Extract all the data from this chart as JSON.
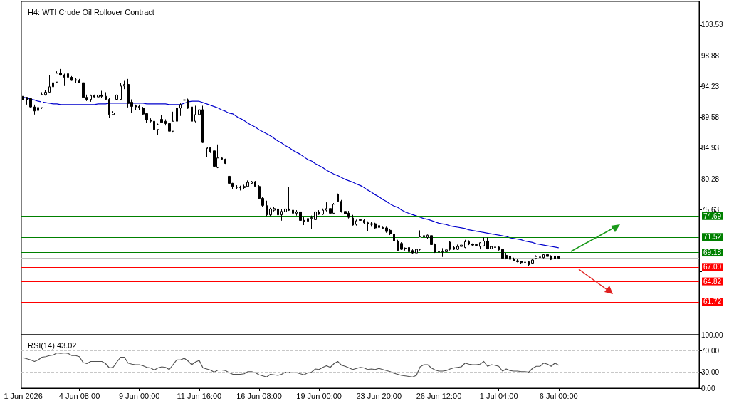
{
  "chart_data": [
    {
      "type": "candlestick",
      "title": "H4: WTI Crude Oil Rollover Contract",
      "categories": [
        null,
        null,
        null,
        null,
        null,
        null,
        null,
        null,
        null,
        null,
        null,
        null,
        null,
        null,
        null,
        null,
        null,
        null,
        null,
        null,
        null,
        null,
        null,
        null,
        null,
        null,
        null,
        null,
        null,
        null,
        null,
        null,
        null,
        null,
        null,
        null,
        null,
        null,
        null,
        null,
        null,
        null,
        null,
        null,
        null,
        null,
        null,
        null,
        null,
        null,
        null,
        null,
        null,
        null,
        null,
        null,
        null,
        null,
        null,
        null,
        null,
        null,
        null,
        null,
        null,
        null,
        null,
        null,
        null,
        null,
        null,
        null,
        null,
        null,
        null,
        null,
        null,
        null,
        null,
        null,
        null,
        null,
        null,
        null,
        null,
        null,
        null,
        null,
        null,
        null,
        null,
        null,
        null,
        null,
        null,
        null,
        null,
        null,
        null,
        null,
        null,
        null,
        null,
        null,
        null,
        null,
        null,
        null,
        null,
        null,
        null,
        null,
        null,
        null,
        null,
        null,
        null,
        null,
        null,
        null,
        null,
        null,
        null,
        null,
        null,
        null,
        null,
        null,
        null,
        null,
        null,
        null,
        null,
        null,
        null,
        null,
        null,
        null,
        null,
        null,
        null,
        null,
        null,
        null,
        null,
        null,
        null,
        null,
        null,
        null,
        null,
        null,
        null,
        null,
        null,
        null,
        null,
        null,
        null,
        null,
        null,
        null,
        null,
        null,
        null,
        null,
        null,
        null,
        null,
        null,
        null,
        null,
        null,
        null,
        null,
        null,
        null,
        null,
        null,
        null,
        null
      ],
      "ohlc": [
        [
          92.76,
          92.94,
          92.04,
          92.22
        ],
        [
          92.58,
          92.65,
          91.5,
          92.29
        ],
        [
          92.4,
          92.51,
          91.07,
          91.15
        ],
        [
          91.15,
          91.5,
          90.0,
          90.54
        ],
        [
          90.61,
          91.22,
          90.0,
          91.07
        ],
        [
          91.04,
          93.37,
          90.86,
          93.01
        ],
        [
          93.01,
          93.65,
          92.86,
          93.37
        ],
        [
          93.37,
          95.98,
          93.29,
          94.19
        ],
        [
          94.19,
          95.08,
          94.08,
          94.8
        ],
        [
          94.9,
          96.52,
          94.73,
          96.23
        ],
        [
          96.23,
          96.87,
          95.87,
          95.98
        ],
        [
          95.98,
          96.16,
          94.3,
          95.62
        ],
        [
          95.62,
          96.34,
          95.37,
          96.16
        ],
        [
          95.62,
          95.8,
          95.08,
          95.16
        ],
        [
          95.26,
          95.51,
          94.8,
          95.16
        ],
        [
          95.08,
          95.37,
          94.73,
          94.8
        ],
        [
          94.8,
          95.16,
          91.86,
          92.58
        ],
        [
          92.58,
          93.01,
          92.04,
          92.29
        ],
        [
          92.29,
          93.01,
          91.93,
          92.86
        ],
        [
          92.86,
          93.01,
          92.58,
          92.65
        ],
        [
          92.65,
          93.47,
          92.51,
          92.94
        ],
        [
          92.94,
          93.58,
          92.51,
          92.76
        ],
        [
          92.76,
          93.37,
          92.15,
          92.29
        ],
        [
          92.29,
          92.51,
          89.54,
          90.0
        ],
        [
          90.0,
          90.5,
          89.89,
          90.25
        ],
        [
          92.29,
          93.01,
          92.15,
          92.94
        ],
        [
          92.29,
          94.73,
          92.22,
          94.3
        ],
        [
          94.3,
          95.08,
          93.83,
          94.55
        ],
        [
          94.55,
          95.37,
          91.07,
          91.68
        ],
        [
          91.86,
          92.29,
          90.25,
          91.22
        ],
        [
          91.33,
          91.5,
          90.72,
          91.15
        ],
        [
          91.22,
          91.5,
          90.72,
          91.07
        ],
        [
          90.97,
          91.15,
          89.89,
          90.07
        ],
        [
          90.14,
          90.25,
          88.71,
          89.18
        ],
        [
          89.18,
          89.43,
          88.82,
          88.99
        ],
        [
          88.99,
          89.18,
          85.85,
          87.74
        ],
        [
          87.74,
          88.64,
          86.92,
          88.46
        ],
        [
          89.28,
          89.89,
          88.71,
          88.82
        ],
        [
          88.99,
          89.28,
          88.35,
          88.64
        ],
        [
          88.64,
          88.82,
          87.28,
          87.49
        ],
        [
          87.49,
          90.43,
          87.28,
          88.99
        ],
        [
          88.99,
          91.33,
          88.82,
          90.97
        ],
        [
          90.97,
          91.68,
          89.79,
          91.5
        ],
        [
          92.22,
          93.58,
          91.86,
          92.15
        ],
        [
          92.22,
          92.4,
          90.86,
          90.97
        ],
        [
          91.15,
          91.33,
          88.82,
          88.99
        ],
        [
          88.99,
          91.33,
          88.82,
          90.0
        ],
        [
          90.0,
          91.5,
          88.99,
          90.72
        ],
        [
          90.72,
          91.33,
          85.71,
          85.78
        ],
        [
          84.88,
          85.12,
          83.63,
          85.05
        ],
        [
          85.0,
          85.1,
          84.2,
          84.4
        ],
        [
          84.52,
          84.7,
          81.55,
          82.19
        ],
        [
          82.02,
          85.49,
          81.91,
          83.45
        ],
        [
          83.45,
          83.52,
          83.2,
          83.27
        ],
        [
          83.27,
          83.34,
          82.55,
          82.62
        ],
        [
          80.69,
          80.94,
          79.3,
          79.62
        ],
        [
          79.62,
          79.69,
          78.79,
          79.15
        ],
        [
          79.05,
          79.33,
          78.7,
          79.0
        ],
        [
          79.0,
          79.26,
          78.54,
          78.97
        ],
        [
          78.97,
          79.4,
          78.8,
          79.15
        ],
        [
          79.15,
          80.05,
          79.05,
          79.76
        ],
        [
          79.62,
          79.97,
          79.5,
          79.87
        ],
        [
          79.87,
          79.97,
          79.12,
          79.15
        ],
        [
          79.15,
          79.33,
          77.25,
          77.36
        ],
        [
          77.36,
          77.54,
          76.11,
          76.29
        ],
        [
          76.26,
          77.0,
          74.68,
          74.86
        ],
        [
          74.86,
          75.93,
          74.68,
          75.75
        ],
        [
          75.57,
          76.04,
          75.39,
          75.82
        ],
        [
          75.75,
          75.82,
          74.75,
          74.86
        ],
        [
          74.86,
          75.75,
          73.99,
          75.39
        ],
        [
          75.32,
          76.29,
          74.75,
          75.75
        ],
        [
          75.75,
          79.04,
          75.46,
          75.57
        ],
        [
          75.57,
          75.93,
          75.0,
          75.11
        ],
        [
          75.11,
          75.57,
          74.75,
          75.32
        ],
        [
          75.32,
          75.57,
          73.96,
          74.03
        ],
        [
          74.03,
          74.5,
          73.32,
          73.89
        ],
        [
          73.89,
          74.68,
          73.67,
          74.32
        ],
        [
          74.32,
          74.75,
          72.71,
          74.46
        ],
        [
          74.14,
          75.93,
          73.96,
          75.32
        ],
        [
          75.32,
          75.57,
          74.86,
          74.96
        ],
        [
          74.96,
          75.82,
          74.86,
          75.57
        ],
        [
          75.57,
          76.75,
          75.39,
          75.82
        ],
        [
          75.82,
          75.93,
          75.0,
          75.11
        ],
        [
          75.11,
          76.65,
          75.0,
          76.47
        ],
        [
          77.97,
          78.08,
          76.83,
          76.9
        ],
        [
          76.9,
          77.11,
          75.21,
          75.32
        ],
        [
          75.39,
          75.57,
          74.86,
          75.03
        ],
        [
          75.11,
          75.46,
          74.32,
          74.5
        ],
        [
          74.39,
          74.86,
          73.25,
          73.32
        ],
        [
          73.42,
          74.14,
          73.25,
          73.96
        ],
        [
          74.14,
          74.39,
          73.89,
          74.03
        ],
        [
          74.03,
          74.25,
          73.53,
          73.67
        ],
        [
          73.67,
          73.89,
          72.46,
          73.53
        ],
        [
          73.53,
          73.78,
          73.07,
          73.42
        ],
        [
          73.53,
          73.67,
          72.71,
          72.89
        ],
        [
          72.96,
          73.42,
          72.82,
          73.25
        ],
        [
          72.96,
          73.07,
          72.71,
          72.82
        ],
        [
          72.89,
          73.07,
          72.17,
          72.35
        ],
        [
          72.53,
          72.71,
          71.81,
          72.0
        ],
        [
          71.98,
          72.16,
          70.8,
          70.91
        ],
        [
          70.91,
          71.09,
          69.37,
          69.48
        ],
        [
          70.55,
          70.73,
          69.58,
          69.66
        ],
        [
          69.84,
          69.94,
          69.48,
          69.76
        ],
        [
          69.94,
          70.09,
          69.23,
          69.3
        ],
        [
          69.48,
          69.66,
          68.94,
          69.12
        ],
        [
          69.12,
          69.73,
          68.94,
          69.66
        ],
        [
          69.66,
          72.52,
          69.48,
          71.52
        ],
        [
          71.52,
          72.34,
          71.37,
          71.73
        ],
        [
          71.45,
          71.88,
          71.27,
          71.8
        ],
        [
          71.73,
          71.88,
          70.19,
          70.37
        ],
        [
          70.37,
          70.55,
          69.12,
          69.23
        ],
        [
          69.3,
          70.37,
          68.94,
          69.23
        ],
        [
          69.3,
          69.84,
          68.51,
          69.26
        ],
        [
          69.3,
          69.73,
          69.23,
          69.58
        ],
        [
          70.73,
          70.91,
          69.48,
          69.66
        ],
        [
          69.94,
          70.19,
          69.58,
          69.66
        ],
        [
          69.66,
          70.37,
          69.58,
          70.09
        ],
        [
          70.09,
          70.55,
          69.84,
          70.3
        ],
        [
          69.94,
          71.09,
          69.84,
          70.8
        ],
        [
          70.8,
          71.02,
          70.3,
          70.44
        ],
        [
          70.44,
          70.55,
          70.19,
          70.3
        ],
        [
          70.37,
          70.73,
          70.01,
          70.26
        ],
        [
          70.09,
          70.73,
          69.66,
          70.66
        ],
        [
          70.19,
          71.45,
          70.09,
          70.91
        ],
        [
          70.91,
          71.45,
          69.66,
          69.73
        ],
        [
          69.73,
          70.19,
          69.37,
          70.09
        ],
        [
          70.01,
          70.19,
          69.84,
          69.94
        ],
        [
          70.01,
          70.09,
          69.48,
          69.58
        ],
        [
          69.66,
          69.73,
          68.22,
          68.3
        ],
        [
          68.76,
          69.12,
          68.15,
          68.3
        ],
        [
          68.65,
          69.01,
          68.05,
          68.15
        ],
        [
          68.22,
          68.4,
          67.87,
          67.94
        ],
        [
          67.94,
          68.15,
          67.69,
          67.79
        ],
        [
          67.84,
          67.94,
          67.51,
          67.66
        ],
        [
          67.72,
          67.94,
          67.33,
          67.69
        ],
        [
          67.79,
          67.94,
          67.15,
          67.33
        ],
        [
          67.58,
          68.15,
          67.44,
          68.05
        ],
        [
          68.3,
          68.76,
          68.15,
          68.58
        ],
        [
          68.51,
          68.65,
          68.22,
          68.44
        ],
        [
          68.4,
          69.01,
          68.3,
          68.87
        ],
        [
          68.87,
          69.01,
          68.15,
          68.58
        ],
        [
          68.65,
          68.76,
          68.05,
          68.15
        ],
        [
          68.22,
          68.76,
          68.05,
          68.65
        ],
        [
          68.58,
          68.65,
          68.3,
          68.33
        ],
        null,
        null,
        null,
        null,
        null,
        null,
        null,
        null,
        null,
        null,
        null,
        null,
        null,
        null,
        null,
        null,
        null,
        null,
        null,
        null,
        null,
        null,
        null,
        null,
        null,
        null,
        null,
        null,
        null,
        null,
        null,
        null,
        null,
        null,
        null,
        null,
        null
      ],
      "series": [
        {
          "type": "line",
          "color": "#0000cc",
          "values": [
            92.6,
            92.5,
            92.3,
            92.2,
            92.0,
            91.9,
            91.8,
            91.7,
            91.6,
            91.6,
            91.5,
            91.5,
            91.5,
            91.5,
            91.5,
            91.5,
            91.5,
            91.5,
            91.5,
            91.5,
            91.6,
            91.6,
            91.6,
            91.7,
            91.7,
            91.7,
            91.7,
            91.7,
            91.7,
            91.7,
            91.7,
            91.7,
            91.7,
            91.6,
            91.6,
            91.6,
            91.6,
            91.6,
            91.6,
            91.5,
            91.5,
            91.5,
            91.5,
            91.7,
            91.9,
            92.0,
            92.0,
            92.0,
            91.8,
            91.6,
            91.4,
            91.2,
            91.0,
            90.7,
            90.5,
            90.2,
            90.1,
            89.7,
            89.4,
            89.1,
            88.7,
            88.4,
            88.1,
            87.7,
            87.4,
            87.1,
            86.8,
            86.4,
            86.0,
            85.7,
            85.3,
            85.0,
            84.6,
            84.3,
            84.0,
            83.6,
            83.2,
            83.0,
            82.6,
            82.3,
            82.0,
            81.6,
            81.3,
            81.0,
            80.8,
            80.5,
            80.2,
            80.0,
            79.8,
            79.5,
            79.3,
            79.0,
            78.6,
            78.3,
            77.9,
            77.6,
            77.2,
            76.9,
            76.5,
            76.2,
            76.0,
            75.6,
            75.3,
            75.1,
            74.9,
            74.7,
            74.5,
            74.3,
            74.2,
            74.0,
            73.8,
            73.6,
            73.5,
            73.4,
            73.2,
            73.1,
            73.0,
            72.9,
            72.8,
            72.6,
            72.5,
            72.4,
            72.3,
            72.2,
            72.1,
            72.0,
            71.9,
            71.8,
            71.7,
            71.6,
            71.4,
            71.3,
            71.2,
            71.1,
            70.9,
            70.8,
            70.7,
            70.5,
            70.4,
            70.3,
            70.2,
            70.1,
            70.0,
            69.9,
            null,
            null,
            null,
            null,
            null,
            null,
            null,
            null,
            null,
            null,
            null,
            null,
            null,
            null,
            null,
            null,
            null,
            null,
            null,
            null,
            null,
            null,
            null,
            null,
            null,
            null,
            null,
            null,
            null,
            null,
            null,
            null,
            null,
            null,
            null,
            null,
            null
          ]
        }
      ],
      "ylim": [
        56.77,
        107.07
      ],
      "yticks": [
        {
          "value": 66.33,
          "label": null
        },
        {
          "value": 70.98,
          "label": null
        },
        75.63,
        80.28,
        84.93,
        89.58,
        94.23,
        98.88,
        103.53
      ],
      "tick_labels": "y",
      "marker": "none",
      "ref_lines": [
        {
          "axis": "y",
          "value": 74.69,
          "label": "74.69",
          "color": "#008000"
        },
        {
          "axis": "y",
          "value": 71.52,
          "label": "71.52",
          "color": "#008000"
        },
        {
          "axis": "y",
          "value": 69.18,
          "label": "69.18",
          "color": "#008000"
        },
        {
          "axis": "y",
          "value": 68.33,
          "color": "#c0c0c0"
        },
        {
          "axis": "y",
          "value": 67.0,
          "label": "67.00",
          "color": "#ff0000"
        },
        {
          "axis": "y",
          "value": 64.82,
          "label": "64.82",
          "color": "#ff0000"
        },
        {
          "axis": "y",
          "value": 61.72,
          "label": "61.72",
          "color": "#ff0000"
        }
      ]
    },
    {
      "type": "line",
      "title": "RSI(14) 43.02",
      "categories": [
        "1 Jun 2026",
        null,
        null,
        null,
        null,
        null,
        null,
        null,
        null,
        null,
        null,
        null,
        null,
        null,
        null,
        "4 Jun 08:00",
        null,
        null,
        null,
        null,
        null,
        null,
        null,
        null,
        null,
        null,
        null,
        null,
        null,
        null,
        null,
        "9 Jun 00:00",
        null,
        null,
        null,
        null,
        null,
        null,
        null,
        null,
        null,
        null,
        null,
        null,
        null,
        null,
        null,
        "11 Jun 16:00",
        null,
        null,
        null,
        null,
        null,
        null,
        null,
        null,
        null,
        null,
        null,
        null,
        null,
        null,
        null,
        "16 Jun 08:00",
        null,
        null,
        null,
        null,
        null,
        null,
        null,
        null,
        null,
        null,
        null,
        null,
        null,
        null,
        null,
        "19 Jun 00:00",
        null,
        null,
        null,
        null,
        null,
        null,
        null,
        null,
        null,
        null,
        null,
        null,
        null,
        null,
        null,
        "23 Jun 20:00",
        null,
        null,
        null,
        null,
        null,
        null,
        null,
        null,
        null,
        null,
        null,
        null,
        null,
        null,
        null,
        "26 Jun 12:00",
        null,
        null,
        null,
        null,
        null,
        null,
        null,
        null,
        null,
        null,
        null,
        null,
        null,
        null,
        null,
        "1 Jul 04:00",
        null,
        null,
        null,
        null,
        null,
        null,
        null,
        null,
        null,
        null,
        null,
        null,
        null,
        null,
        null,
        "6 Jul 00:00",
        null,
        null,
        null,
        null,
        null,
        null,
        null,
        null,
        null,
        null,
        null,
        null,
        null,
        null,
        null,
        null,
        null,
        null,
        null,
        null,
        null,
        null,
        null,
        null,
        null,
        null,
        null,
        null,
        null,
        null,
        null,
        null,
        null,
        null,
        null,
        null,
        null
      ],
      "series": [
        {
          "color": "#505050",
          "values": [
            57,
            55,
            53,
            50,
            53,
            58,
            59,
            61,
            62,
            66,
            65,
            66,
            65,
            61,
            61,
            59,
            48,
            46,
            50,
            50,
            50,
            50,
            46,
            38,
            39,
            49,
            58,
            58,
            47,
            45,
            44,
            44,
            42,
            39,
            38,
            34,
            38,
            40,
            39,
            35,
            44,
            53,
            53,
            56,
            51,
            44,
            49,
            52,
            38,
            36,
            34,
            30,
            34,
            34,
            33,
            29,
            26,
            26,
            26,
            27,
            31,
            31,
            29,
            25,
            23,
            21,
            26,
            25,
            24,
            26,
            30,
            30,
            29,
            29,
            27,
            25,
            29,
            30,
            36,
            35,
            39,
            42,
            39,
            46,
            50,
            43,
            41,
            38,
            35,
            37,
            39,
            38,
            35,
            36,
            35,
            37,
            35,
            33,
            31,
            28,
            26,
            24,
            23,
            22,
            21,
            24,
            40,
            44,
            44,
            38,
            34,
            32,
            32,
            33,
            36,
            38,
            39,
            40,
            47,
            45,
            44,
            44,
            45,
            50,
            41,
            44,
            43,
            41,
            32,
            36,
            33,
            32,
            32,
            31,
            31,
            30,
            37,
            41,
            41,
            47,
            45,
            41,
            47,
            43,
            null,
            null,
            null,
            null,
            null,
            null,
            null,
            null,
            null,
            null,
            null,
            null,
            null,
            null,
            null,
            null,
            null,
            null,
            null,
            null,
            null,
            null,
            null,
            null,
            null,
            null,
            null,
            null,
            null,
            null,
            null,
            null,
            null,
            null,
            null,
            null,
            null
          ]
        }
      ],
      "ylim": [
        0,
        100
      ],
      "yticks": [
        {
          "value": 0,
          "label": "0.00"
        },
        {
          "value": 30,
          "label": "30.00"
        },
        {
          "value": 70,
          "label": "70.00"
        },
        {
          "value": 100,
          "label": "100.00"
        }
      ],
      "marker": "none",
      "ref_lines": [
        {
          "axis": "y",
          "value": 70,
          "color": "#c8c8c8",
          "line_style": "dashed"
        },
        {
          "axis": "y",
          "value": 30,
          "color": "#c8c8c8",
          "line_style": "dashed"
        }
      ]
    }
  ]
}
